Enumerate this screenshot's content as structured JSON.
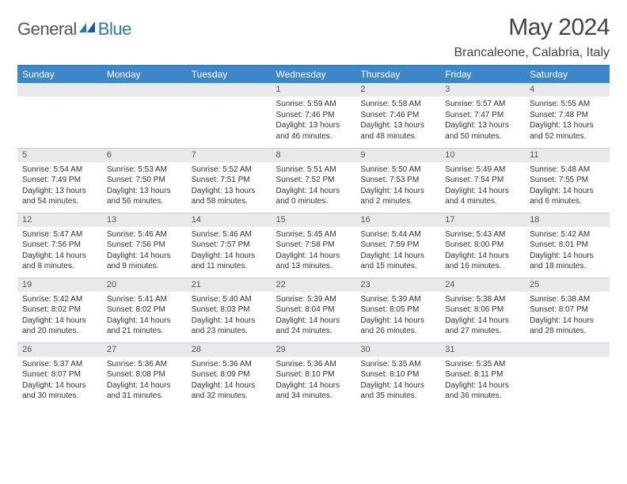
{
  "branding": {
    "word1": "General",
    "word2": "Blue",
    "grayColor": "#555555",
    "blueColor": "#2a77bb"
  },
  "title": {
    "month": "May 2024",
    "location": "Brancaleone, Calabria, Italy"
  },
  "colors": {
    "headerBg": "#3d87c9",
    "headerText": "#ffffff",
    "dayNumBg": "#e8e9ea",
    "rowBorder": "#b8cfe5",
    "accent": "#2a77bb"
  },
  "typography": {
    "monthTitleSize": 30,
    "locationSize": 16,
    "weekdaySize": 12,
    "dayNumSize": 11,
    "bodySize": 10
  },
  "weekdays": [
    "Sunday",
    "Monday",
    "Tuesday",
    "Wednesday",
    "Thursday",
    "Friday",
    "Saturday"
  ],
  "weeks": [
    [
      null,
      null,
      null,
      {
        "n": "1",
        "sr": "5:59 AM",
        "ss": "7:46 PM",
        "dl": "13 hours and 46 minutes."
      },
      {
        "n": "2",
        "sr": "5:58 AM",
        "ss": "7:46 PM",
        "dl": "13 hours and 48 minutes."
      },
      {
        "n": "3",
        "sr": "5:57 AM",
        "ss": "7:47 PM",
        "dl": "13 hours and 50 minutes."
      },
      {
        "n": "4",
        "sr": "5:55 AM",
        "ss": "7:48 PM",
        "dl": "13 hours and 52 minutes."
      }
    ],
    [
      {
        "n": "5",
        "sr": "5:54 AM",
        "ss": "7:49 PM",
        "dl": "13 hours and 54 minutes."
      },
      {
        "n": "6",
        "sr": "5:53 AM",
        "ss": "7:50 PM",
        "dl": "13 hours and 56 minutes."
      },
      {
        "n": "7",
        "sr": "5:52 AM",
        "ss": "7:51 PM",
        "dl": "13 hours and 58 minutes."
      },
      {
        "n": "8",
        "sr": "5:51 AM",
        "ss": "7:52 PM",
        "dl": "14 hours and 0 minutes."
      },
      {
        "n": "9",
        "sr": "5:50 AM",
        "ss": "7:53 PM",
        "dl": "14 hours and 2 minutes."
      },
      {
        "n": "10",
        "sr": "5:49 AM",
        "ss": "7:54 PM",
        "dl": "14 hours and 4 minutes."
      },
      {
        "n": "11",
        "sr": "5:48 AM",
        "ss": "7:55 PM",
        "dl": "14 hours and 6 minutes."
      }
    ],
    [
      {
        "n": "12",
        "sr": "5:47 AM",
        "ss": "7:56 PM",
        "dl": "14 hours and 8 minutes."
      },
      {
        "n": "13",
        "sr": "5:46 AM",
        "ss": "7:56 PM",
        "dl": "14 hours and 9 minutes."
      },
      {
        "n": "14",
        "sr": "5:46 AM",
        "ss": "7:57 PM",
        "dl": "14 hours and 11 minutes."
      },
      {
        "n": "15",
        "sr": "5:45 AM",
        "ss": "7:58 PM",
        "dl": "14 hours and 13 minutes."
      },
      {
        "n": "16",
        "sr": "5:44 AM",
        "ss": "7:59 PM",
        "dl": "14 hours and 15 minutes."
      },
      {
        "n": "17",
        "sr": "5:43 AM",
        "ss": "8:00 PM",
        "dl": "14 hours and 16 minutes."
      },
      {
        "n": "18",
        "sr": "5:42 AM",
        "ss": "8:01 PM",
        "dl": "14 hours and 18 minutes."
      }
    ],
    [
      {
        "n": "19",
        "sr": "5:42 AM",
        "ss": "8:02 PM",
        "dl": "14 hours and 20 minutes."
      },
      {
        "n": "20",
        "sr": "5:41 AM",
        "ss": "8:02 PM",
        "dl": "14 hours and 21 minutes."
      },
      {
        "n": "21",
        "sr": "5:40 AM",
        "ss": "8:03 PM",
        "dl": "14 hours and 23 minutes."
      },
      {
        "n": "22",
        "sr": "5:39 AM",
        "ss": "8:04 PM",
        "dl": "14 hours and 24 minutes."
      },
      {
        "n": "23",
        "sr": "5:39 AM",
        "ss": "8:05 PM",
        "dl": "14 hours and 26 minutes."
      },
      {
        "n": "24",
        "sr": "5:38 AM",
        "ss": "8:06 PM",
        "dl": "14 hours and 27 minutes."
      },
      {
        "n": "25",
        "sr": "5:38 AM",
        "ss": "8:07 PM",
        "dl": "14 hours and 28 minutes."
      }
    ],
    [
      {
        "n": "26",
        "sr": "5:37 AM",
        "ss": "8:07 PM",
        "dl": "14 hours and 30 minutes."
      },
      {
        "n": "27",
        "sr": "5:36 AM",
        "ss": "8:08 PM",
        "dl": "14 hours and 31 minutes."
      },
      {
        "n": "28",
        "sr": "5:36 AM",
        "ss": "8:09 PM",
        "dl": "14 hours and 32 minutes."
      },
      {
        "n": "29",
        "sr": "5:36 AM",
        "ss": "8:10 PM",
        "dl": "14 hours and 34 minutes."
      },
      {
        "n": "30",
        "sr": "5:35 AM",
        "ss": "8:10 PM",
        "dl": "14 hours and 35 minutes."
      },
      {
        "n": "31",
        "sr": "5:35 AM",
        "ss": "8:11 PM",
        "dl": "14 hours and 36 minutes."
      },
      null
    ]
  ],
  "labels": {
    "sunrise": "Sunrise:",
    "sunset": "Sunset:",
    "daylight": "Daylight:"
  }
}
